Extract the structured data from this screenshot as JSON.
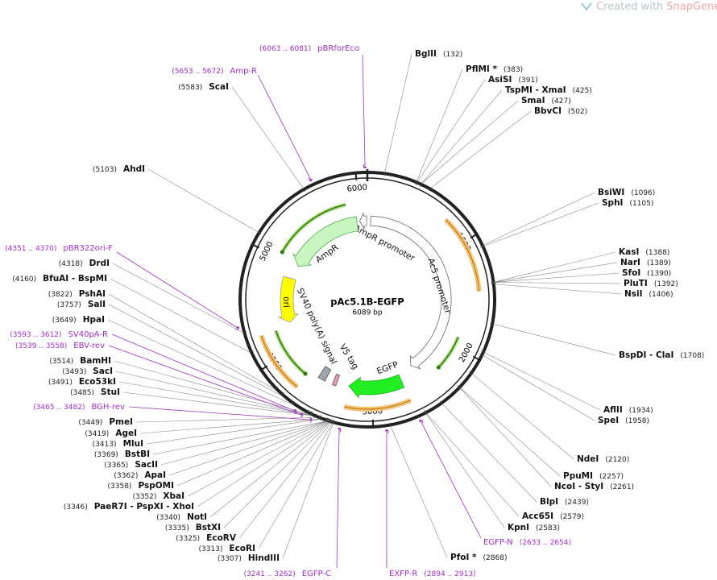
{
  "watermark": {
    "prefix": "Created with ",
    "brand": "SnapGene",
    "mark": "®"
  },
  "plasmid": {
    "name": "pAc5.1B-EGFP",
    "length": 6089,
    "length_label": "6089 bp",
    "ruler": [
      1000,
      2000,
      3000,
      4000,
      5000,
      6000
    ]
  },
  "features": [
    {
      "label": "AmpR promoter"
    },
    {
      "label": "Ac5 promoter"
    },
    {
      "label": "AmpR"
    },
    {
      "label": "ori"
    },
    {
      "label": "SV40 poly(A) signal"
    },
    {
      "label": "V5 tag"
    },
    {
      "label": "EGFP"
    }
  ],
  "enzymes": [
    {
      "name": "BglII",
      "site": "(132)",
      "position": 132
    },
    {
      "name": "PflMI *",
      "site": "(383)",
      "position": 383,
      "color": "#888888"
    },
    {
      "name": "AsiSI",
      "site": "(391)",
      "position": 391
    },
    {
      "name": "TspMI - XmaI",
      "site": "(425)",
      "position": 425
    },
    {
      "name": "SmaI",
      "site": "(427)",
      "position": 427
    },
    {
      "name": "BbvCI",
      "site": "(502)",
      "position": 502
    },
    {
      "name": "BsiWI",
      "site": "(1096)",
      "position": 1096
    },
    {
      "name": "SphI",
      "site": "(1105)",
      "position": 1105
    },
    {
      "name": "KasI",
      "site": "(1388)",
      "position": 1388
    },
    {
      "name": "NarI",
      "site": "(1389)",
      "position": 1389
    },
    {
      "name": "SfoI",
      "site": "(1390)",
      "position": 1390
    },
    {
      "name": "PluTI",
      "site": "(1392)",
      "position": 1392
    },
    {
      "name": "NsiI",
      "site": "(1406)",
      "position": 1406
    },
    {
      "name": "BspDI - ClaI",
      "site": "(1708)",
      "position": 1708
    },
    {
      "name": "AflII",
      "site": "(1934)",
      "position": 1934
    },
    {
      "name": "SpeI",
      "site": "(1958)",
      "position": 1958
    },
    {
      "name": "NdeI",
      "site": "(2120)",
      "position": 2120
    },
    {
      "name": "PpuMI",
      "site": "(2257)",
      "position": 2257
    },
    {
      "name": "NcoI - StyI",
      "site": "(2261)",
      "position": 2261
    },
    {
      "name": "BlpI",
      "site": "(2439)",
      "position": 2439
    },
    {
      "name": "Acc65I",
      "site": "(2579)",
      "position": 2579
    },
    {
      "name": "KpnI",
      "site": "(2583)",
      "position": 2583
    },
    {
      "name": "PfoI *",
      "site": "(2868)",
      "position": 2868,
      "color": "#888888"
    },
    {
      "name": "AhdI",
      "site": "(5103)",
      "position": 5103
    },
    {
      "name": "ScaI",
      "site": "(5583)",
      "position": 5583
    },
    {
      "name": "DrdI",
      "site": "(4318)",
      "position": 4318
    },
    {
      "name": "BfuAI - BspMI",
      "site": "(4160)",
      "position": 4160
    },
    {
      "name": "PshAI",
      "site": "(3822)",
      "position": 3822
    },
    {
      "name": "SalI",
      "site": "(3757)",
      "position": 3757
    },
    {
      "name": "HpaI",
      "site": "(3649)",
      "position": 3649
    },
    {
      "name": "BamHI",
      "site": "(3514)",
      "position": 3514
    },
    {
      "name": "SacI",
      "site": "(3493)",
      "position": 3493
    },
    {
      "name": "Eco53kI",
      "site": "(3491)",
      "position": 3491
    },
    {
      "name": "StuI",
      "site": "(3485)",
      "position": 3485
    },
    {
      "name": "PmeI",
      "site": "(3449)",
      "position": 3449
    },
    {
      "name": "AgeI",
      "site": "(3419)",
      "position": 3419
    },
    {
      "name": "MluI",
      "site": "(3413)",
      "position": 3413
    },
    {
      "name": "BstBI",
      "site": "(3369)",
      "position": 3369
    },
    {
      "name": "SacII",
      "site": "(3365)",
      "position": 3365
    },
    {
      "name": "ApaI",
      "site": "(3362)",
      "position": 3362
    },
    {
      "name": "PspOMI",
      "site": "(3358)",
      "position": 3358
    },
    {
      "name": "XbaI",
      "site": "(3352)",
      "position": 3352
    },
    {
      "name": "PaeR7I - PspXI - XhoI",
      "site": "(3346)",
      "position": 3346
    },
    {
      "name": "NotI",
      "site": "(3340)",
      "position": 3340
    },
    {
      "name": "BstXI",
      "site": "(3335)",
      "position": 3335
    },
    {
      "name": "EcoRV",
      "site": "(3325)",
      "position": 3325
    },
    {
      "name": "EcoRI",
      "site": "(3313)",
      "position": 3313
    },
    {
      "name": "HindIII",
      "site": "(3307)",
      "position": 3307
    }
  ],
  "primers": [
    {
      "name": "pBRforEco",
      "range": "(6063 .. 6081)",
      "start": 6063,
      "end": 6081
    },
    {
      "name": "Amp-R",
      "range": "(5653 .. 5672)",
      "start": 5653,
      "end": 5672
    },
    {
      "name": "pBR322ori-F",
      "range": "(4351 .. 4370)",
      "start": 4351,
      "end": 4370
    },
    {
      "name": "SV40pA-R",
      "range": "(3593 .. 3612)",
      "start": 3593,
      "end": 3612
    },
    {
      "name": "EBV-rev",
      "range": "(3539 .. 3558)",
      "start": 3539,
      "end": 3558
    },
    {
      "name": "BGH-rev",
      "range": "(3465 .. 3482)",
      "start": 3465,
      "end": 3482
    },
    {
      "name": "EGFP-C",
      "range": "(3241 .. 3262)",
      "start": 3241,
      "end": 3262
    },
    {
      "name": "EXFP-R",
      "range": "(2894 .. 2913)",
      "start": 2894,
      "end": 2913
    },
    {
      "name": "EGFP-N",
      "range": "(2633 .. 2654)",
      "start": 2633,
      "end": 2654
    }
  ]
}
